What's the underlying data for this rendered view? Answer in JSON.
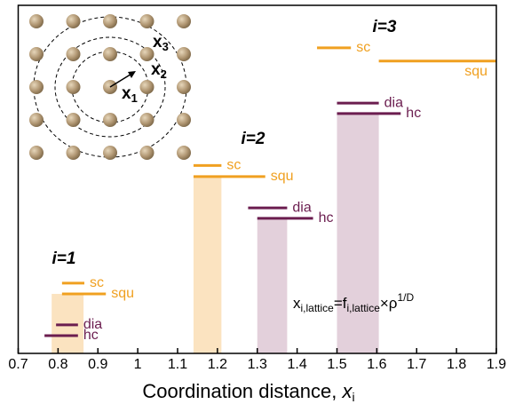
{
  "chart_data": {
    "type": "segments",
    "xlabel": [
      "Coordination distance, ",
      "x",
      "i"
    ],
    "xlim": [
      0.7,
      1.9
    ],
    "xticks": [
      0.7,
      0.8,
      0.9,
      1,
      1.1,
      1.2,
      1.3,
      1.4,
      1.5,
      1.6,
      1.7,
      1.8,
      1.9
    ],
    "ylim": [
      0,
      1
    ],
    "formula": [
      "x",
      "i,lattice",
      "=f",
      "i,lattice",
      "×ρ",
      "1/D"
    ],
    "inset_labels": [
      [
        "x",
        "1"
      ],
      [
        "x",
        "2"
      ],
      [
        "x",
        "3"
      ]
    ],
    "groups": [
      {
        "label": "i=1",
        "bands": [
          {
            "x": [
              0.784,
              0.864
            ],
            "top": 0.171,
            "color": "#fbe3c0"
          }
        ],
        "segments": [
          {
            "label": "sc",
            "color": "#f0a020",
            "x": [
              0.81,
              0.866
            ],
            "y": 0.202
          },
          {
            "label": "squ",
            "color": "#f0a020",
            "x": [
              0.81,
              0.92
            ],
            "y": 0.171
          },
          {
            "label": "dia",
            "color": "#6b1d4f",
            "x": [
              0.795,
              0.85
            ],
            "y": 0.082
          },
          {
            "label": "hc",
            "color": "#6b1d4f",
            "x": [
              0.766,
              0.85
            ],
            "y": 0.051
          }
        ]
      },
      {
        "label": "i=2",
        "bands": [
          {
            "x": [
              1.14,
              1.21
            ],
            "top": 0.508,
            "color": "#fbe3c0"
          },
          {
            "x": [
              1.3,
              1.375
            ],
            "top": 0.388,
            "color": "#e3d0db"
          }
        ],
        "segments": [
          {
            "label": "sc",
            "color": "#f0a020",
            "x": [
              1.14,
              1.21
            ],
            "y": 0.54
          },
          {
            "label": "squ",
            "color": "#f0a020",
            "x": [
              1.14,
              1.32
            ],
            "y": 0.508
          },
          {
            "label": "dia",
            "color": "#6b1d4f",
            "x": [
              1.277,
              1.375
            ],
            "y": 0.418
          },
          {
            "label": "hc",
            "color": "#6b1d4f",
            "x": [
              1.3,
              1.44
            ],
            "y": 0.388
          }
        ]
      },
      {
        "label": "i=3",
        "bands": [
          {
            "x": [
              1.5,
              1.605
            ],
            "top": 0.689,
            "color": "#e3d0db"
          }
        ],
        "segments": [
          {
            "label": "sc",
            "color": "#f0a020",
            "x": [
              1.45,
              1.535
            ],
            "y": 0.878
          },
          {
            "label": "squ",
            "color": "#f0a020",
            "x": [
              1.605,
              1.9
            ],
            "y": 0.84
          },
          {
            "label": "dia",
            "color": "#6b1d4f",
            "x": [
              1.5,
              1.605
            ],
            "y": 0.719
          },
          {
            "label": "hc",
            "color": "#6b1d4f",
            "x": [
              1.5,
              1.66
            ],
            "y": 0.689
          }
        ]
      }
    ]
  }
}
